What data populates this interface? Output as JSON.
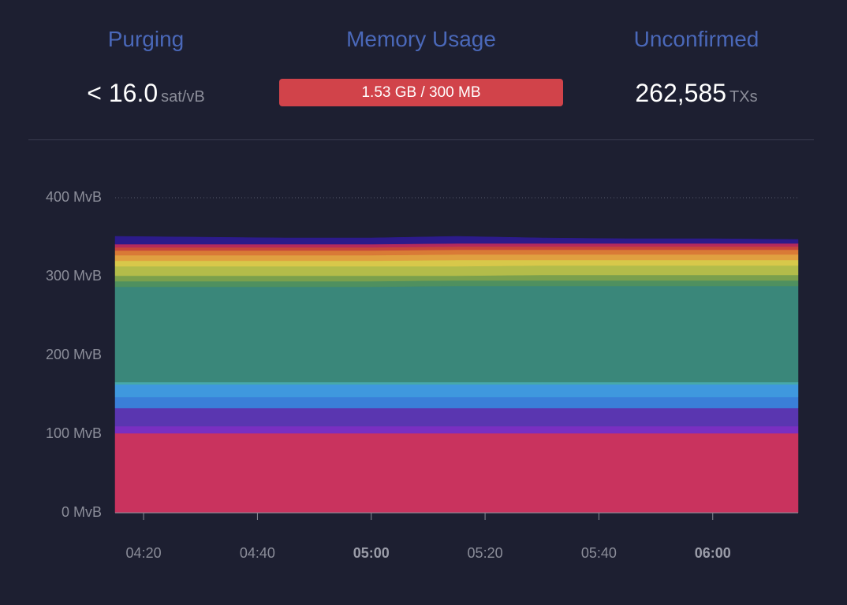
{
  "stats": [
    {
      "title": "Purging",
      "value": "< 16.0",
      "unit": "sat/vB"
    },
    {
      "title": "Memory Usage",
      "value": "1.53 GB / 300 MB"
    },
    {
      "title": "Unconfirmed",
      "value": "262,585",
      "unit": "TXs"
    }
  ],
  "chart_data": {
    "type": "stacked-area",
    "x": [
      "04:15",
      "04:30",
      "04:45",
      "05:00",
      "05:15",
      "05:30",
      "05:45",
      "06:00",
      "06:15"
    ],
    "xlim": [
      "04:15",
      "06:15"
    ],
    "xticks": [
      "04:20",
      "04:40",
      "05:00",
      "05:20",
      "05:40",
      "06:00"
    ],
    "ylim": [
      0,
      400
    ],
    "yticks": [
      {
        "value": 0,
        "label": "0 MvB"
      },
      {
        "value": 100,
        "label": "100 MvB"
      },
      {
        "value": 200,
        "label": "200 MvB"
      },
      {
        "value": 300,
        "label": "300 MvB"
      },
      {
        "value": 400,
        "label": "400 MvB"
      }
    ],
    "grid": true,
    "series": [
      {
        "color": "#c9335e",
        "values": [
          101,
          101,
          101,
          101,
          101,
          101,
          101,
          101,
          101
        ]
      },
      {
        "color": "#7a2fc1",
        "values": [
          9,
          9,
          9,
          9,
          9,
          9,
          9,
          9,
          9
        ]
      },
      {
        "color": "#5a36b0",
        "values": [
          23,
          23,
          23,
          23,
          23,
          23,
          23,
          23,
          23
        ]
      },
      {
        "color": "#3a7fd8",
        "values": [
          14,
          14,
          14,
          14,
          14,
          14,
          14,
          14,
          14
        ]
      },
      {
        "color": "#3f98de",
        "values": [
          16,
          16,
          16,
          16,
          16,
          16,
          16,
          16,
          16
        ]
      },
      {
        "color": "#47a9aa",
        "values": [
          3,
          3,
          3,
          3,
          3,
          3,
          3,
          3,
          3
        ]
      },
      {
        "color": "#3a877a",
        "values": [
          121,
          121,
          121,
          121,
          122,
          122,
          122,
          122,
          122
        ]
      },
      {
        "color": "#4f905f",
        "values": [
          7,
          7,
          7,
          7,
          7,
          7,
          7,
          7,
          7
        ]
      },
      {
        "color": "#7aa04d",
        "values": [
          7,
          7,
          7,
          7,
          6,
          7,
          7,
          7,
          7
        ]
      },
      {
        "color": "#b3bc4a",
        "values": [
          12,
          12,
          12,
          12,
          12,
          12,
          12,
          12,
          12
        ]
      },
      {
        "color": "#d8c84a",
        "values": [
          7,
          7,
          7,
          7,
          8,
          7,
          7,
          7,
          7
        ]
      },
      {
        "color": "#e0a040",
        "values": [
          7,
          7,
          7,
          7,
          7,
          7,
          7,
          7,
          7
        ]
      },
      {
        "color": "#d97a36",
        "values": [
          6,
          6,
          6,
          6,
          6,
          6,
          6,
          6,
          6
        ]
      },
      {
        "color": "#c8463a",
        "values": [
          4,
          4,
          4,
          4,
          4,
          4,
          4,
          4,
          4
        ]
      },
      {
        "color": "#b42a5c",
        "values": [
          4,
          4,
          4,
          4,
          4,
          4,
          4,
          4,
          4
        ]
      },
      {
        "color": "#2c1b8a",
        "values": [
          10,
          9,
          8,
          8,
          9,
          7,
          6,
          6,
          5
        ]
      }
    ]
  }
}
